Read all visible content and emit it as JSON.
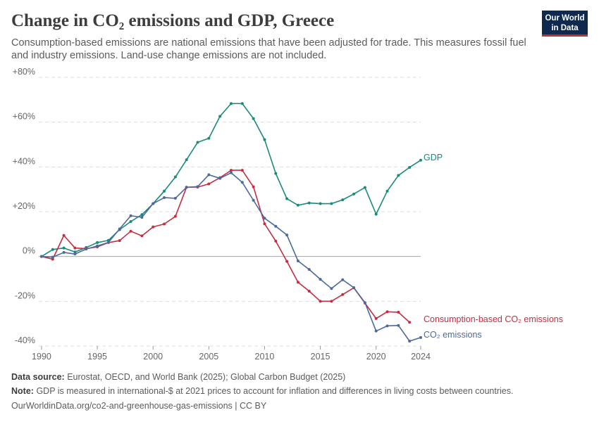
{
  "header": {
    "title": "Change in CO₂ emissions and GDP, Greece",
    "subtitle": "Consumption-based emissions are national emissions that have been adjusted for trade. This measures fossil fuel and industry emissions. Land-use change emissions are not included."
  },
  "logo": {
    "line1": "Our World",
    "line2": "in Data"
  },
  "footer": {
    "source_label": "Data source:",
    "source_text": "Eurostat, OECD, and World Bank (2025); Global Carbon Budget (2025)",
    "note_label": "Note:",
    "note_text": "GDP is measured in international-$ at 2021 prices to account for inflation and differences in living costs between countries.",
    "url_text": "OurWorldinData.org/co2-and-greenhouse-gas-emissions | CC BY"
  },
  "chart_data": {
    "type": "line",
    "x": [
      1990,
      1991,
      1992,
      1993,
      1994,
      1995,
      1996,
      1997,
      1998,
      1999,
      2000,
      2001,
      2002,
      2003,
      2004,
      2005,
      2006,
      2007,
      2008,
      2009,
      2010,
      2011,
      2012,
      2013,
      2014,
      2015,
      2016,
      2017,
      2018,
      2019,
      2020,
      2021,
      2022,
      2023,
      2024
    ],
    "xticks": [
      "1990",
      "1995",
      "2000",
      "2005",
      "2010",
      "2015",
      "2020",
      "2024"
    ],
    "xtick_values": [
      1990,
      1995,
      2000,
      2005,
      2010,
      2015,
      2020,
      2024
    ],
    "yticks": [
      "-40%",
      "-20%",
      "0%",
      "+20%",
      "+40%",
      "+60%",
      "+80%"
    ],
    "ytick_values": [
      -40,
      -20,
      0,
      20,
      40,
      60,
      80
    ],
    "ylim": [
      -40,
      80
    ],
    "xlim": [
      1989,
      2024
    ],
    "grid": true,
    "series": [
      {
        "name": "GDP",
        "color": "#1a8a7a",
        "values": [
          0,
          3.1,
          3.8,
          2,
          4,
          6.2,
          7.2,
          12,
          15.6,
          18.7,
          23.6,
          29.2,
          35.5,
          43.2,
          51,
          52.8,
          62.6,
          68.3,
          68.3,
          61.6,
          52.2,
          37.1,
          25.8,
          22.9,
          23.9,
          23.6,
          23.6,
          25.3,
          27.9,
          30.8,
          18.9,
          29.2,
          36.2,
          39.8,
          43
        ]
      },
      {
        "name": "Consumption-based CO₂ emissions",
        "color": "#c42e40",
        "values": [
          0,
          -1.2,
          9.4,
          3.8,
          3.5,
          4.3,
          6.2,
          7.1,
          11.3,
          9.2,
          13.2,
          14.5,
          17.9,
          30.9,
          31,
          32.4,
          35.2,
          38.5,
          38.5,
          31.1,
          14.6,
          6.9,
          -2.2,
          -11.5,
          -15.5,
          -20,
          -20,
          -17,
          -14,
          -20.8,
          -27.7,
          -24.7,
          -24.9,
          -29.4,
          null
        ]
      },
      {
        "name": "CO₂ emissions",
        "color": "#4c6a9c",
        "values": [
          0,
          -0.3,
          1.8,
          1.1,
          3.3,
          4.7,
          6.3,
          12.3,
          18.2,
          17.5,
          23.6,
          26.3,
          26,
          30.9,
          31.2,
          36.5,
          34.9,
          37.4,
          33.1,
          25.1,
          17.1,
          13.5,
          9.6,
          -2,
          -5.8,
          -10.2,
          -14.3,
          -10.4,
          -13.9,
          -20.6,
          -33.3,
          -31,
          -30.8,
          -37.8,
          -36.2
        ]
      }
    ]
  }
}
